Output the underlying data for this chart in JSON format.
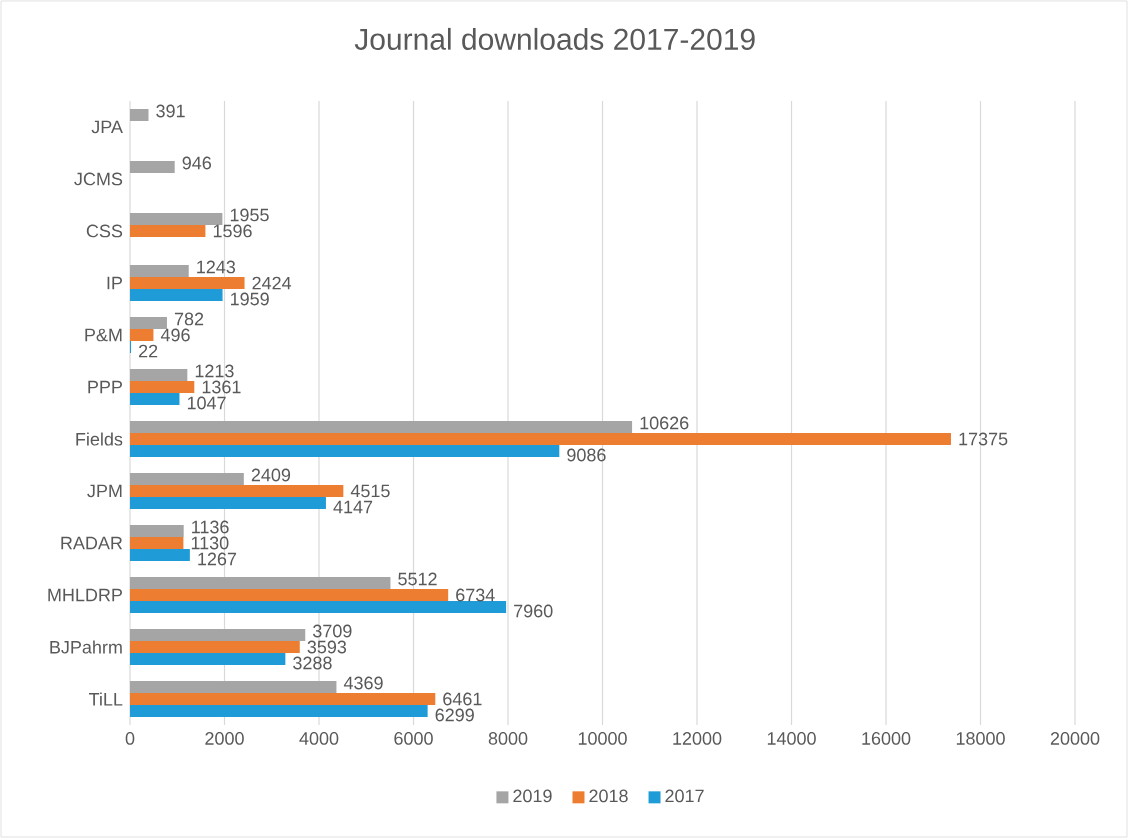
{
  "chart_data": {
    "type": "bar",
    "orientation": "horizontal",
    "title": "Journal downloads 2017-2019",
    "categories": [
      "JPA",
      "JCMS",
      "CSS",
      "IP",
      "P&M",
      "PPP",
      "Fields",
      "JPM",
      "RADAR",
      "MHLDRP",
      "BJPahrm",
      "TiLL"
    ],
    "series": [
      {
        "name": "2019",
        "color": "#a5a5a5",
        "values": [
          391,
          946,
          1955,
          1243,
          782,
          1213,
          10626,
          2409,
          1136,
          5512,
          3709,
          4369
        ]
      },
      {
        "name": "2018",
        "color": "#ed7d31",
        "values": [
          null,
          null,
          1596,
          2424,
          496,
          1361,
          17375,
          4515,
          1130,
          6734,
          3593,
          6461
        ]
      },
      {
        "name": "2017",
        "color": "#1f9bd7",
        "values": [
          null,
          null,
          null,
          1959,
          22,
          1047,
          9086,
          4147,
          1267,
          7960,
          3288,
          6299
        ]
      }
    ],
    "xlim": [
      0,
      20000
    ],
    "xticks": [
      0,
      2000,
      4000,
      6000,
      8000,
      10000,
      12000,
      14000,
      16000,
      18000,
      20000
    ],
    "grid": "x",
    "legend": "bottom",
    "data_labels": true
  }
}
